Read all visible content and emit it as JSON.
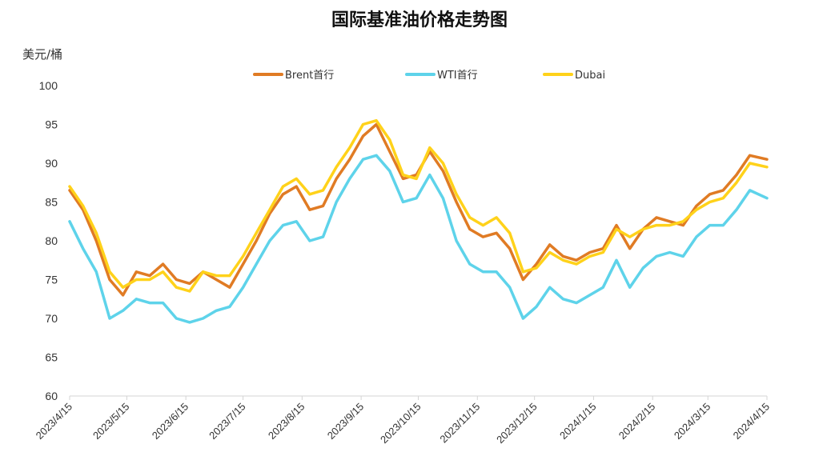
{
  "chart_data": {
    "type": "line",
    "title": "国际基准油价格走势图",
    "ylabel": "美元/桶",
    "ylim": [
      60,
      100
    ],
    "yticks": [
      "60",
      "65",
      "70",
      "75",
      "80",
      "85",
      "90",
      "95",
      "100"
    ],
    "xticks": [
      "2023/4/15",
      "2023/5/15",
      "2023/6/15",
      "2023/7/15",
      "2023/8/15",
      "2023/9/15",
      "2023/10/15",
      "2023/11/15",
      "2023/12/15",
      "2024/1/15",
      "2024/2/15",
      "2024/3/15",
      "2024/4/15"
    ],
    "legend_position": "top",
    "x": [
      "2023/4/15",
      "2023/4/22",
      "2023/4/29",
      "2023/5/6",
      "2023/5/13",
      "2023/5/20",
      "2023/5/27",
      "2023/6/3",
      "2023/6/10",
      "2023/6/17",
      "2023/6/24",
      "2023/7/1",
      "2023/7/8",
      "2023/7/15",
      "2023/7/22",
      "2023/7/29",
      "2023/8/5",
      "2023/8/12",
      "2023/8/19",
      "2023/8/26",
      "2023/9/2",
      "2023/9/9",
      "2023/9/16",
      "2023/9/23",
      "2023/9/30",
      "2023/10/7",
      "2023/10/14",
      "2023/10/21",
      "2023/10/28",
      "2023/11/4",
      "2023/11/11",
      "2023/11/18",
      "2023/11/25",
      "2023/12/2",
      "2023/12/9",
      "2023/12/16",
      "2023/12/23",
      "2023/12/30",
      "2024/1/6",
      "2024/1/13",
      "2024/1/20",
      "2024/1/27",
      "2024/2/3",
      "2024/2/10",
      "2024/2/17",
      "2024/2/24",
      "2024/3/2",
      "2024/3/9",
      "2024/3/16",
      "2024/3/23",
      "2024/3/30",
      "2024/4/6",
      "2024/4/15"
    ],
    "series": [
      {
        "name": "Brent首行",
        "color": "#e07b24",
        "values": [
          86.5,
          84.0,
          80.0,
          75.0,
          73.0,
          76.0,
          75.5,
          77.0,
          75.0,
          74.5,
          76.0,
          75.0,
          74.0,
          77.0,
          80.0,
          83.5,
          86.0,
          87.0,
          84.0,
          84.5,
          88.0,
          90.5,
          93.5,
          95.0,
          91.5,
          88.0,
          88.5,
          91.5,
          89.0,
          85.0,
          81.5,
          80.5,
          81.0,
          79.0,
          75.0,
          77.0,
          79.5,
          78.0,
          77.5,
          78.5,
          79.0,
          82.0,
          79.0,
          81.5,
          83.0,
          82.5,
          82.0,
          84.5,
          86.0,
          86.5,
          88.5,
          91.0,
          90.5
        ]
      },
      {
        "name": "WTI首行",
        "color": "#5ed3ea",
        "values": [
          82.5,
          79.0,
          76.0,
          70.0,
          71.0,
          72.5,
          72.0,
          72.0,
          70.0,
          69.5,
          70.0,
          71.0,
          71.5,
          74.0,
          77.0,
          80.0,
          82.0,
          82.5,
          80.0,
          80.5,
          85.0,
          88.0,
          90.5,
          91.0,
          89.0,
          85.0,
          85.5,
          88.5,
          85.5,
          80.0,
          77.0,
          76.0,
          76.0,
          74.0,
          70.0,
          71.5,
          74.0,
          72.5,
          72.0,
          73.0,
          74.0,
          77.5,
          74.0,
          76.5,
          78.0,
          78.5,
          78.0,
          80.5,
          82.0,
          82.0,
          84.0,
          86.5,
          85.5
        ]
      },
      {
        "name": "Dubai",
        "color": "#ffd21a",
        "values": [
          87.0,
          84.5,
          81.0,
          76.0,
          74.0,
          75.0,
          75.0,
          76.0,
          74.0,
          73.5,
          76.0,
          75.5,
          75.5,
          78.0,
          81.0,
          84.0,
          87.0,
          88.0,
          86.0,
          86.5,
          89.5,
          92.0,
          95.0,
          95.5,
          93.0,
          88.5,
          88.0,
          92.0,
          90.0,
          86.0,
          83.0,
          82.0,
          83.0,
          81.0,
          76.0,
          76.5,
          78.5,
          77.5,
          77.0,
          78.0,
          78.5,
          81.5,
          80.5,
          81.5,
          82.0,
          82.0,
          82.5,
          84.0,
          85.0,
          85.5,
          87.5,
          90.0,
          89.5
        ]
      }
    ]
  }
}
